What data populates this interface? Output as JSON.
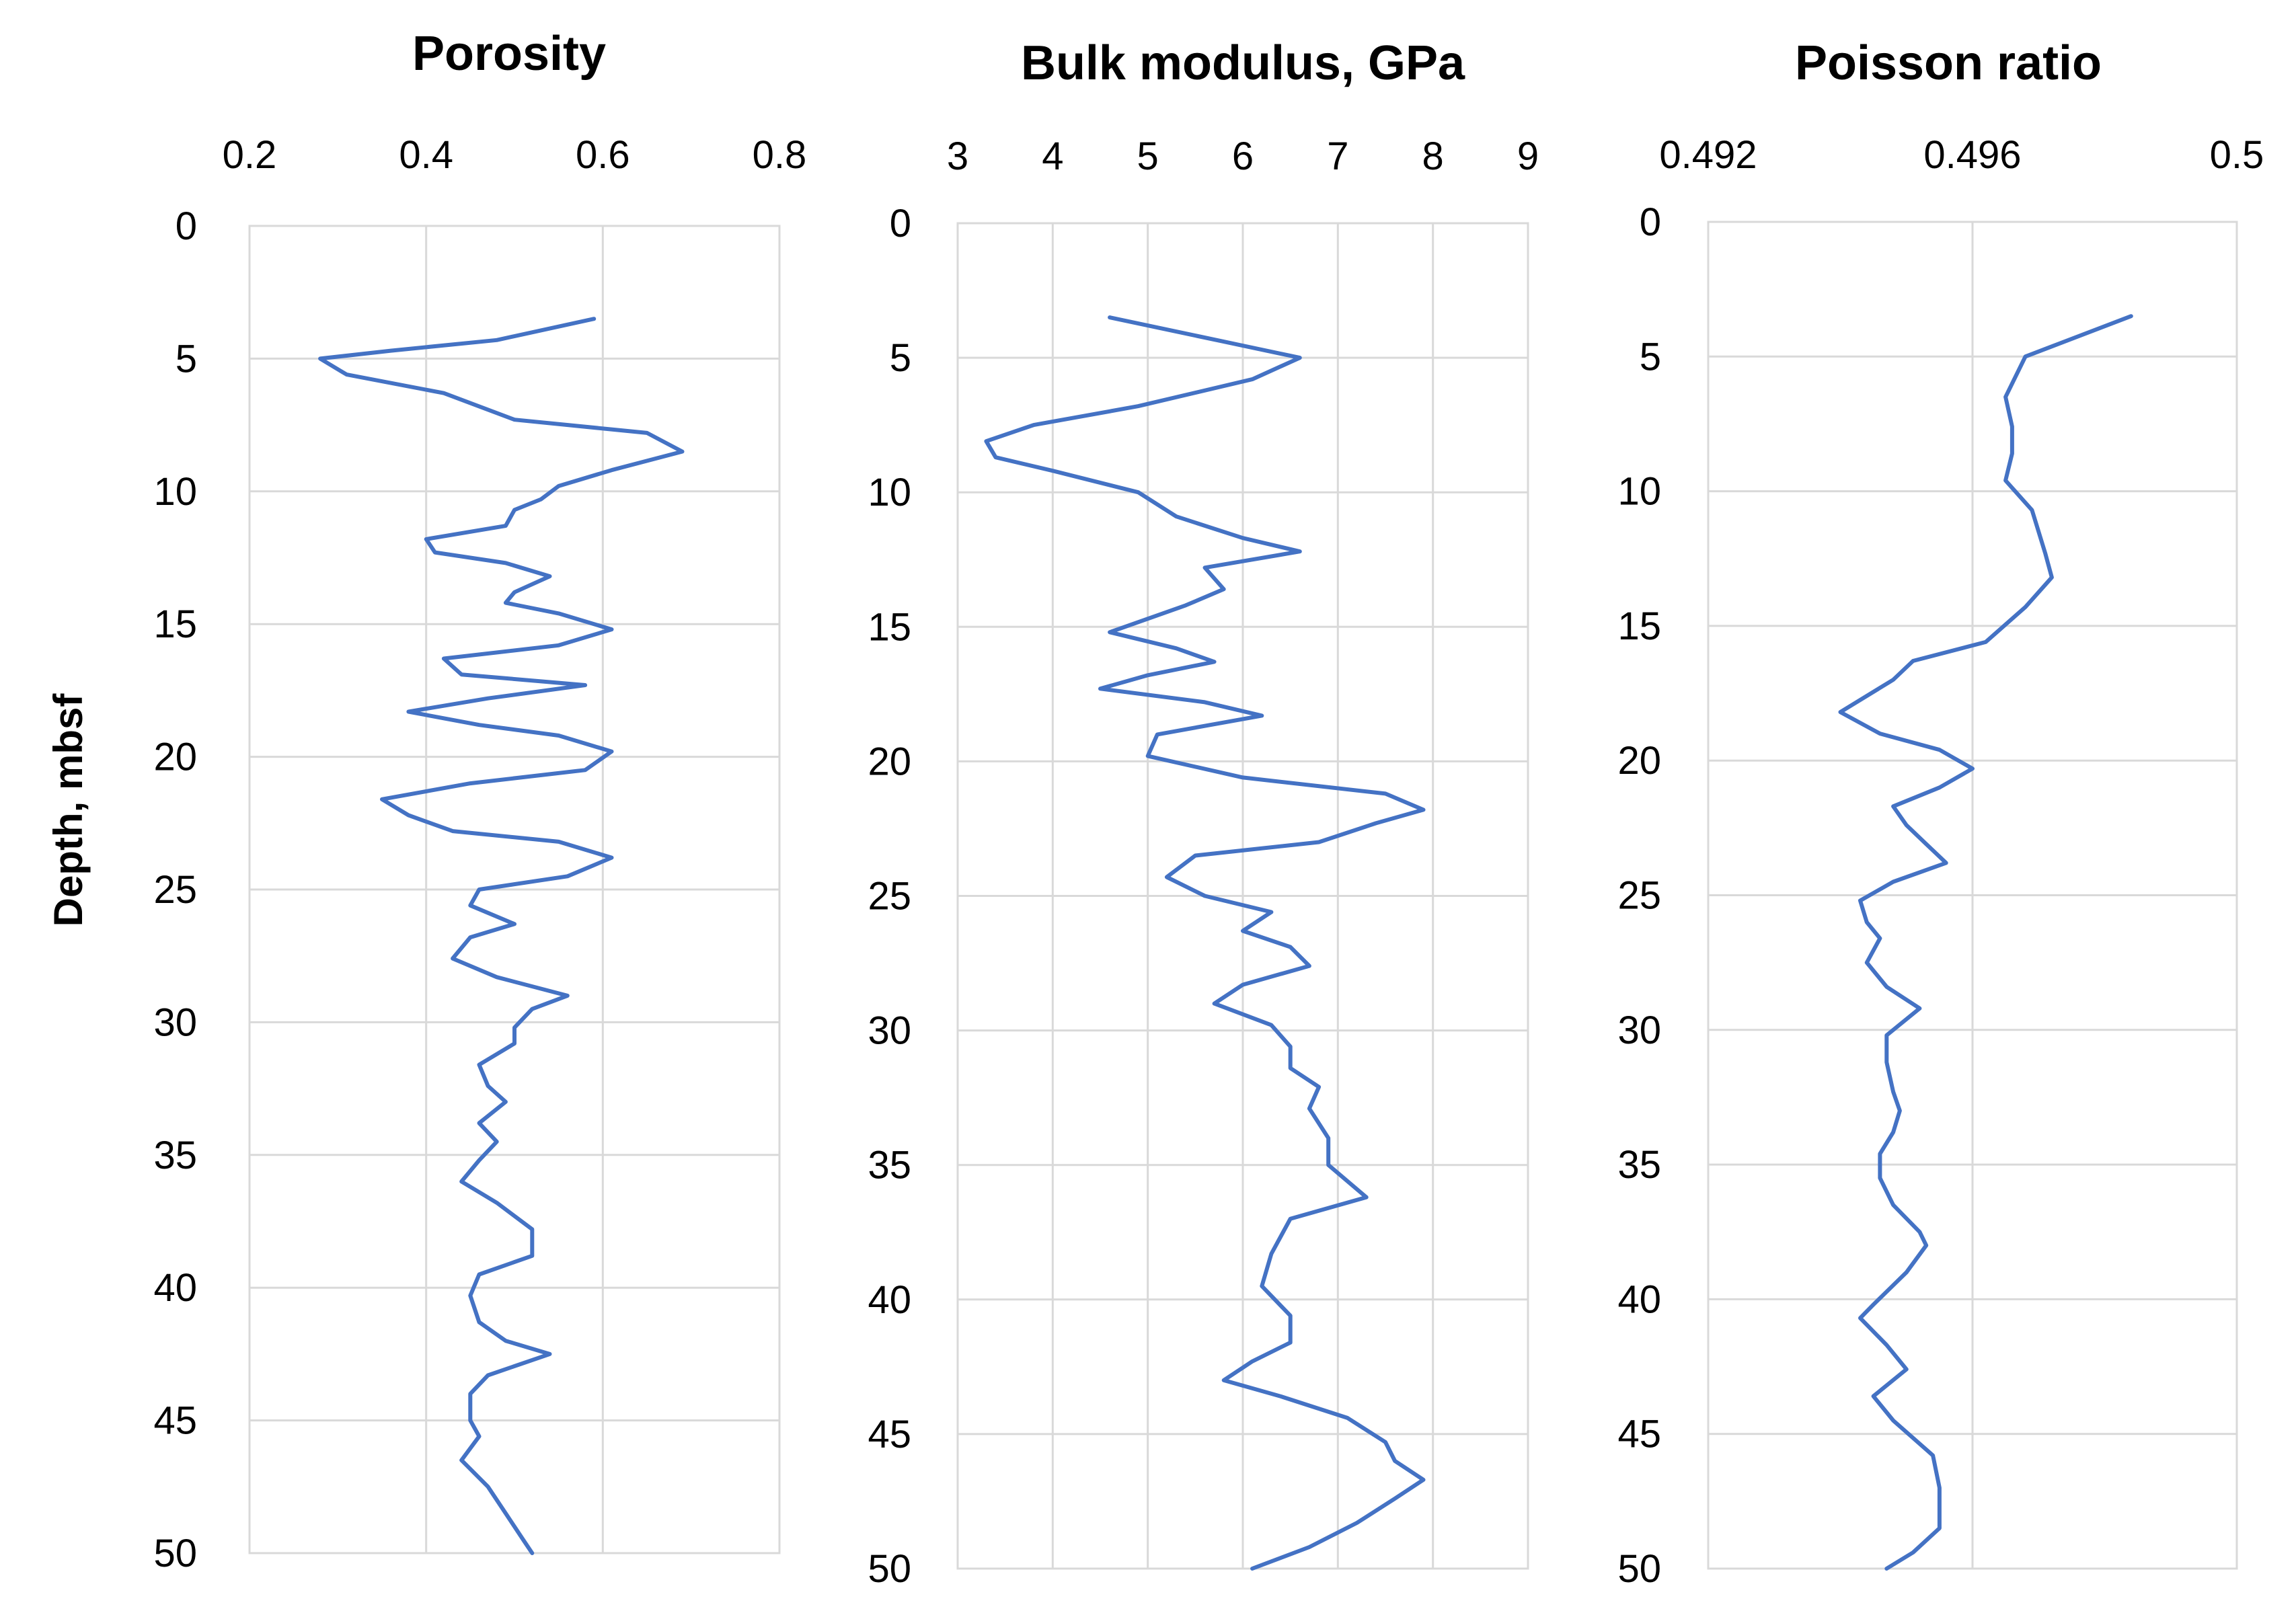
{
  "figure": {
    "shared_ylabel": "Depth, mbsf",
    "line_color": "#4472C4",
    "grid_color": "#D9D9D9"
  },
  "chart_data": [
    {
      "type": "line",
      "title": "Porosity",
      "xlabel": "Porosity",
      "ylabel": "Depth, mbsf",
      "xlim": [
        0.2,
        0.8
      ],
      "ylim": [
        0,
        50
      ],
      "x_ticks": [
        "0.2",
        "0.4",
        "0.6",
        "0.8"
      ],
      "y_ticks": [
        "0",
        "5",
        "10",
        "15",
        "20",
        "25",
        "30",
        "35",
        "40",
        "45",
        "50"
      ],
      "series": [
        {
          "name": "Porosity",
          "points": [
            [
              0.59,
              3.5
            ],
            [
              0.48,
              4.3
            ],
            [
              0.36,
              4.7
            ],
            [
              0.28,
              5.0
            ],
            [
              0.31,
              5.6
            ],
            [
              0.42,
              6.3
            ],
            [
              0.5,
              7.3
            ],
            [
              0.65,
              7.8
            ],
            [
              0.69,
              8.5
            ],
            [
              0.61,
              9.2
            ],
            [
              0.55,
              9.8
            ],
            [
              0.53,
              10.3
            ],
            [
              0.5,
              10.7
            ],
            [
              0.49,
              11.3
            ],
            [
              0.4,
              11.8
            ],
            [
              0.41,
              12.3
            ],
            [
              0.49,
              12.7
            ],
            [
              0.54,
              13.2
            ],
            [
              0.5,
              13.8
            ],
            [
              0.49,
              14.2
            ],
            [
              0.55,
              14.6
            ],
            [
              0.61,
              15.2
            ],
            [
              0.55,
              15.8
            ],
            [
              0.42,
              16.3
            ],
            [
              0.44,
              16.9
            ],
            [
              0.58,
              17.3
            ],
            [
              0.47,
              17.8
            ],
            [
              0.38,
              18.3
            ],
            [
              0.46,
              18.8
            ],
            [
              0.55,
              19.2
            ],
            [
              0.61,
              19.8
            ],
            [
              0.58,
              20.5
            ],
            [
              0.45,
              21.0
            ],
            [
              0.35,
              21.6
            ],
            [
              0.38,
              22.2
            ],
            [
              0.43,
              22.8
            ],
            [
              0.55,
              23.2
            ],
            [
              0.61,
              23.8
            ],
            [
              0.56,
              24.5
            ],
            [
              0.46,
              25.0
            ],
            [
              0.45,
              25.6
            ],
            [
              0.5,
              26.3
            ],
            [
              0.45,
              26.8
            ],
            [
              0.43,
              27.6
            ],
            [
              0.48,
              28.3
            ],
            [
              0.56,
              29.0
            ],
            [
              0.52,
              29.5
            ],
            [
              0.5,
              30.2
            ],
            [
              0.5,
              30.8
            ],
            [
              0.46,
              31.6
            ],
            [
              0.47,
              32.4
            ],
            [
              0.49,
              33.0
            ],
            [
              0.46,
              33.8
            ],
            [
              0.48,
              34.5
            ],
            [
              0.46,
              35.2
            ],
            [
              0.44,
              36.0
            ],
            [
              0.48,
              36.8
            ],
            [
              0.52,
              37.8
            ],
            [
              0.52,
              38.8
            ],
            [
              0.46,
              39.5
            ],
            [
              0.45,
              40.3
            ],
            [
              0.46,
              41.3
            ],
            [
              0.49,
              42.0
            ],
            [
              0.54,
              42.5
            ],
            [
              0.47,
              43.3
            ],
            [
              0.45,
              44.0
            ],
            [
              0.45,
              45.0
            ],
            [
              0.46,
              45.6
            ],
            [
              0.44,
              46.5
            ],
            [
              0.47,
              47.5
            ],
            [
              0.49,
              48.5
            ],
            [
              0.51,
              49.5
            ],
            [
              0.52,
              50.0
            ]
          ]
        }
      ]
    },
    {
      "type": "line",
      "title": "Bulk modulus, GPa",
      "xlabel": "Bulk modulus, GPa",
      "ylabel": "Depth, mbsf",
      "xlim": [
        3,
        9
      ],
      "ylim": [
        0,
        50
      ],
      "x_ticks": [
        "3",
        "4",
        "5",
        "6",
        "7",
        "8",
        "9"
      ],
      "y_ticks": [
        "0",
        "5",
        "10",
        "15",
        "20",
        "25",
        "30",
        "35",
        "40",
        "45",
        "50"
      ],
      "series": [
        {
          "name": "Bulk modulus",
          "points": [
            [
              4.6,
              3.5
            ],
            [
              5.8,
              4.4
            ],
            [
              6.6,
              5.0
            ],
            [
              6.1,
              5.8
            ],
            [
              4.9,
              6.8
            ],
            [
              3.8,
              7.5
            ],
            [
              3.3,
              8.1
            ],
            [
              3.4,
              8.7
            ],
            [
              4.0,
              9.2
            ],
            [
              4.9,
              10.0
            ],
            [
              5.3,
              10.9
            ],
            [
              6.0,
              11.7
            ],
            [
              6.6,
              12.2
            ],
            [
              5.6,
              12.8
            ],
            [
              5.8,
              13.6
            ],
            [
              5.4,
              14.2
            ],
            [
              4.6,
              15.2
            ],
            [
              5.3,
              15.8
            ],
            [
              5.7,
              16.3
            ],
            [
              5.0,
              16.8
            ],
            [
              4.5,
              17.3
            ],
            [
              5.6,
              17.8
            ],
            [
              6.2,
              18.3
            ],
            [
              5.1,
              19.0
            ],
            [
              5.0,
              19.8
            ],
            [
              6.0,
              20.6
            ],
            [
              7.5,
              21.2
            ],
            [
              7.9,
              21.8
            ],
            [
              7.4,
              22.3
            ],
            [
              6.8,
              23.0
            ],
            [
              5.5,
              23.5
            ],
            [
              5.2,
              24.3
            ],
            [
              5.6,
              25.0
            ],
            [
              6.3,
              25.6
            ],
            [
              6.0,
              26.3
            ],
            [
              6.5,
              26.9
            ],
            [
              6.7,
              27.6
            ],
            [
              6.0,
              28.3
            ],
            [
              5.7,
              29.0
            ],
            [
              6.3,
              29.8
            ],
            [
              6.5,
              30.6
            ],
            [
              6.5,
              31.4
            ],
            [
              6.8,
              32.1
            ],
            [
              6.7,
              32.9
            ],
            [
              6.9,
              34.0
            ],
            [
              6.9,
              35.0
            ],
            [
              7.3,
              36.2
            ],
            [
              6.5,
              37.0
            ],
            [
              6.3,
              38.3
            ],
            [
              6.2,
              39.5
            ],
            [
              6.5,
              40.6
            ],
            [
              6.5,
              41.6
            ],
            [
              6.1,
              42.3
            ],
            [
              5.8,
              43.0
            ],
            [
              6.4,
              43.6
            ],
            [
              7.1,
              44.4
            ],
            [
              7.5,
              45.3
            ],
            [
              7.6,
              46.0
            ],
            [
              7.9,
              46.7
            ],
            [
              7.6,
              47.4
            ],
            [
              7.2,
              48.3
            ],
            [
              6.7,
              49.2
            ],
            [
              6.1,
              50.0
            ]
          ]
        }
      ]
    },
    {
      "type": "line",
      "title": "Poisson ratio",
      "xlabel": "Poisson ratio",
      "ylabel": "Depth, mbsf",
      "xlim": [
        0.492,
        0.5
      ],
      "ylim": [
        0,
        50
      ],
      "x_ticks": [
        "0.492",
        "0.496",
        "0.5"
      ],
      "y_ticks": [
        "0",
        "5",
        "10",
        "15",
        "20",
        "25",
        "30",
        "35",
        "40",
        "45",
        "50"
      ],
      "series": [
        {
          "name": "Poisson ratio",
          "points": [
            [
              0.4984,
              3.5
            ],
            [
              0.4968,
              5.0
            ],
            [
              0.4965,
              6.5
            ],
            [
              0.4966,
              7.6
            ],
            [
              0.4966,
              8.6
            ],
            [
              0.4965,
              9.6
            ],
            [
              0.4969,
              10.7
            ],
            [
              0.4971,
              12.3
            ],
            [
              0.4972,
              13.2
            ],
            [
              0.4968,
              14.3
            ],
            [
              0.4962,
              15.6
            ],
            [
              0.4951,
              16.3
            ],
            [
              0.4948,
              17.0
            ],
            [
              0.494,
              18.2
            ],
            [
              0.4946,
              19.0
            ],
            [
              0.4955,
              19.6
            ],
            [
              0.496,
              20.3
            ],
            [
              0.4955,
              21.0
            ],
            [
              0.4948,
              21.7
            ],
            [
              0.495,
              22.4
            ],
            [
              0.4953,
              23.1
            ],
            [
              0.4956,
              23.8
            ],
            [
              0.4948,
              24.5
            ],
            [
              0.4943,
              25.2
            ],
            [
              0.4944,
              26.0
            ],
            [
              0.4946,
              26.6
            ],
            [
              0.4944,
              27.5
            ],
            [
              0.4947,
              28.4
            ],
            [
              0.4952,
              29.2
            ],
            [
              0.4947,
              30.2
            ],
            [
              0.4947,
              31.2
            ],
            [
              0.4948,
              32.3
            ],
            [
              0.4949,
              33.0
            ],
            [
              0.4948,
              33.8
            ],
            [
              0.4946,
              34.6
            ],
            [
              0.4946,
              35.5
            ],
            [
              0.4948,
              36.5
            ],
            [
              0.4952,
              37.5
            ],
            [
              0.4953,
              38.0
            ],
            [
              0.495,
              39.0
            ],
            [
              0.4945,
              40.2
            ],
            [
              0.4943,
              40.7
            ],
            [
              0.4947,
              41.7
            ],
            [
              0.495,
              42.6
            ],
            [
              0.4945,
              43.6
            ],
            [
              0.4948,
              44.5
            ],
            [
              0.4954,
              45.8
            ],
            [
              0.4955,
              47.0
            ],
            [
              0.4955,
              48.5
            ],
            [
              0.4951,
              49.4
            ],
            [
              0.4947,
              50.0
            ]
          ]
        }
      ]
    }
  ]
}
